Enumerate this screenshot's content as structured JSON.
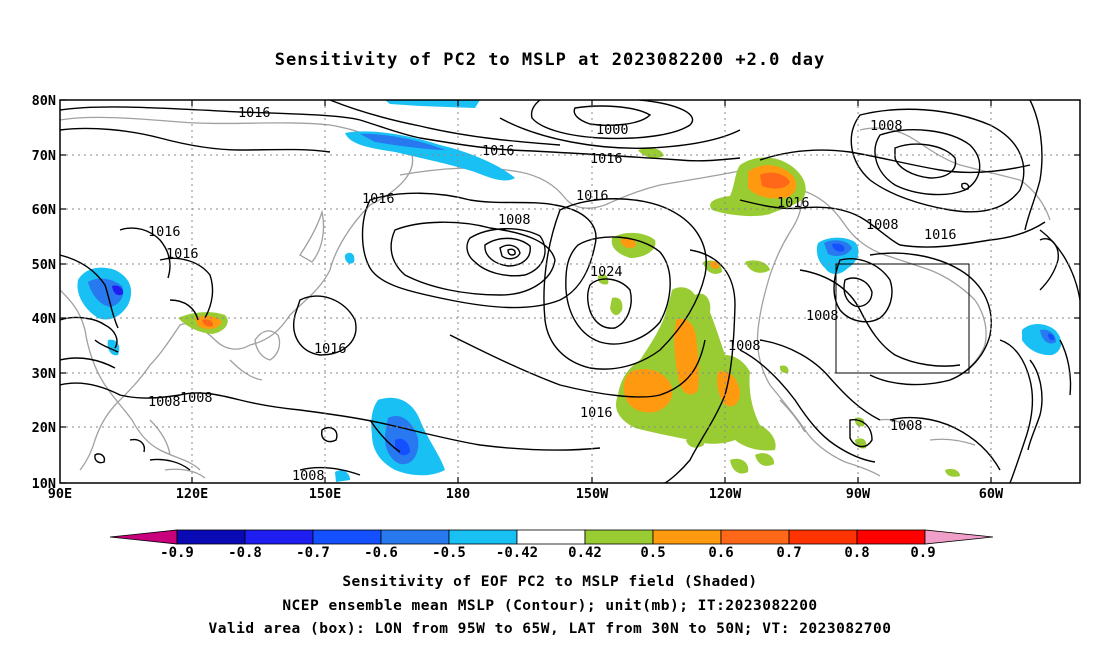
{
  "title": "Sensitivity of PC2 to MSLP at 2023082200 +2.0 day",
  "axes": {
    "lat_labels": [
      "80N",
      "70N",
      "60N",
      "50N",
      "40N",
      "30N",
      "20N",
      "10N"
    ],
    "lon_labels": [
      "90E",
      "120E",
      "150E",
      "180",
      "150W",
      "120W",
      "90W",
      "60W"
    ]
  },
  "contour_labels": {
    "c1": "1016",
    "c2": "1016",
    "c3": "1000",
    "c4": "1016",
    "c5": "1008",
    "c6": "1016",
    "c7": "1016",
    "c8": "1016",
    "c9": "1016",
    "c10": "1008",
    "c11": "1016",
    "c12": "1024",
    "c13": "1008",
    "c14": "1016",
    "c15": "1016",
    "c16": "1008",
    "c17": "1016",
    "c18": "1008",
    "c19": "1008",
    "c20": "1008",
    "c21": "1008",
    "c22": "1008",
    "c23": "1008"
  },
  "colorbar": {
    "labels": [
      "-0.9",
      "-0.8",
      "-0.7",
      "-0.6",
      "-0.5",
      "-0.42",
      "0.42",
      "0.5",
      "0.6",
      "0.7",
      "0.8",
      "0.9"
    ],
    "colors": [
      "#c8007c",
      "#0a0ab4",
      "#1e1ef0",
      "#1450ff",
      "#2878f0",
      "#18c0f4",
      "#ffffff",
      "#99cc33",
      "#ff9a10",
      "#ff6818",
      "#ff3300",
      "#ff0000",
      "#f0a0c8"
    ]
  },
  "captions": {
    "line1": "Sensitivity of EOF PC2 to MSLP field (Shaded)",
    "line2": "NCEP ensemble mean MSLP (Contour); unit(mb); IT:2023082200",
    "line3": "Valid area (box): LON from 95W to 65W, LAT from 30N to 50N; VT: 2023082700"
  }
}
